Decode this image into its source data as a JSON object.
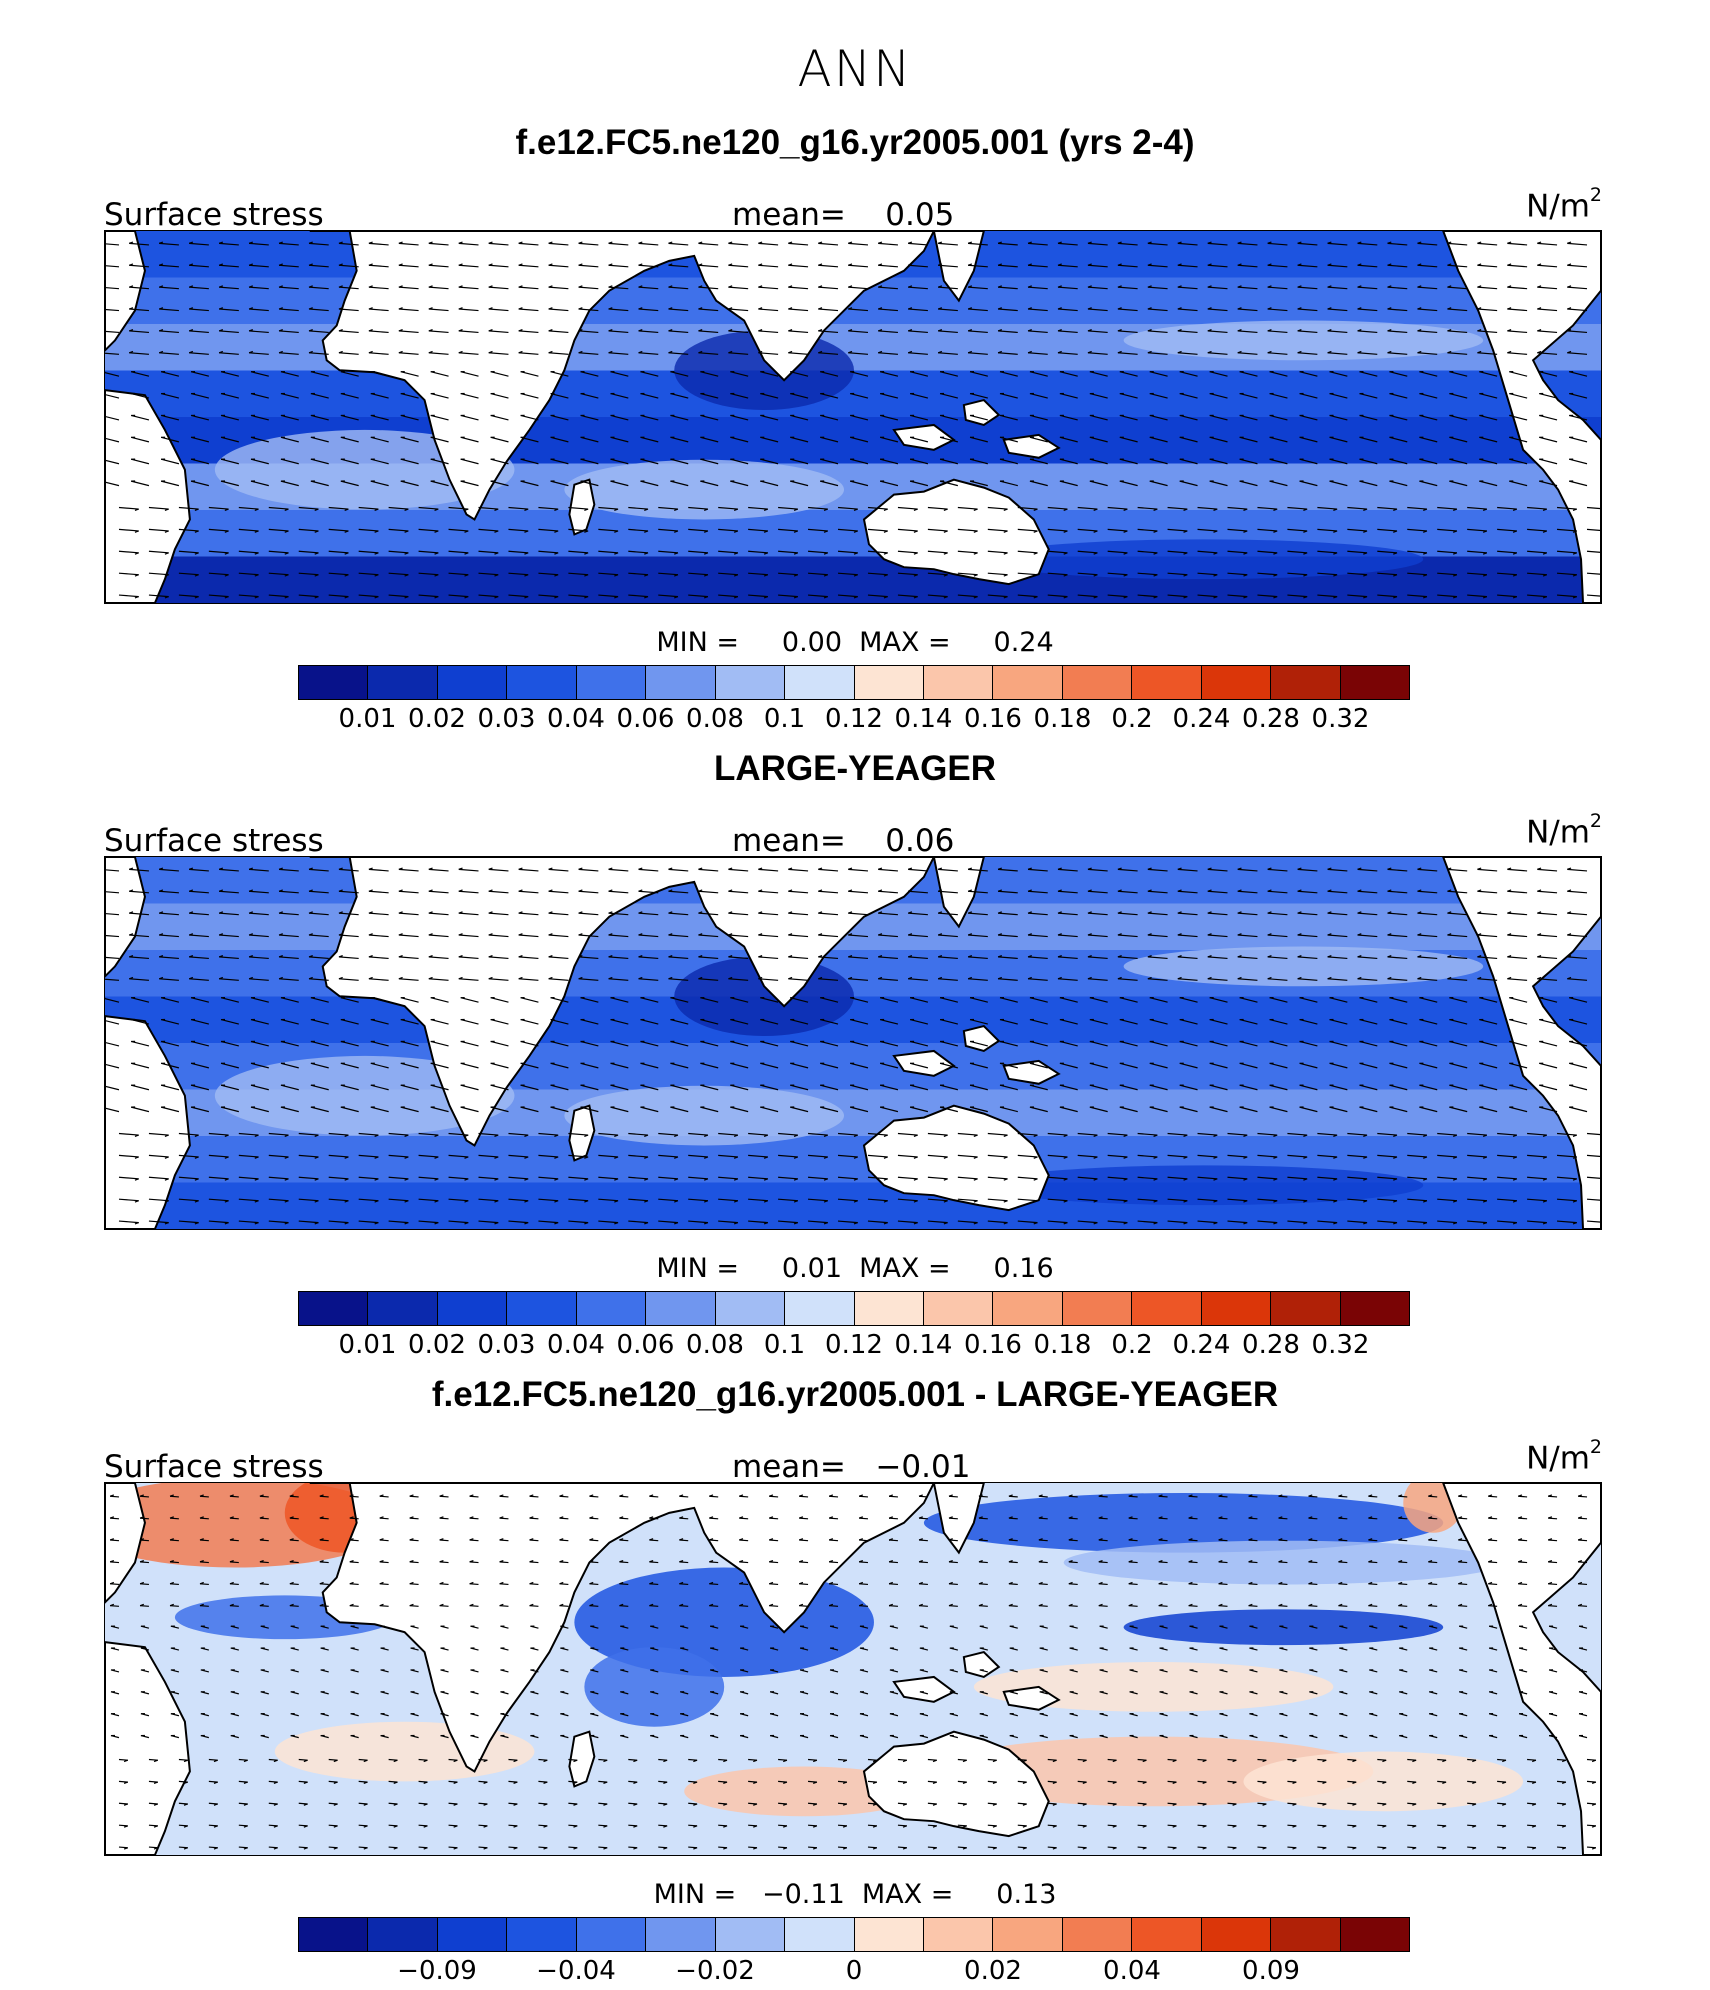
{
  "title": "ANN",
  "colors": {
    "scale": [
      "#08128a",
      "#0b29ad",
      "#0f3fd0",
      "#1d54e0",
      "#3f71ea",
      "#7096ef",
      "#a1bcf4",
      "#d0e1fa",
      "#fde4d3",
      "#fbc6ab",
      "#f8a67f",
      "#f27d52",
      "#ed5626",
      "#db3609",
      "#b02107",
      "#7a0405"
    ],
    "land": "#ffffff",
    "coast": "#000000"
  },
  "panels": [
    {
      "id": "model",
      "title": "f.e12.FC5.ne120_g16.yr2005.001 (yrs 2-4)",
      "field_label": "Surface stress",
      "mean_label": "mean=    0.05",
      "units_base": "N/m",
      "units_exp": "2",
      "min_max_label": "MIN =     0.00  MAX =     0.24",
      "colorbar_ticks": [
        "0.01",
        "0.02",
        "0.03",
        "0.04",
        "0.06",
        "0.08",
        "0.1",
        "0.12",
        "0.14",
        "0.16",
        "0.18",
        "0.2",
        "0.24",
        "0.28",
        "0.32"
      ]
    },
    {
      "id": "obs",
      "title": "LARGE-YEAGER",
      "field_label": "Surface stress",
      "mean_label": "mean=    0.06",
      "units_base": "N/m",
      "units_exp": "2",
      "min_max_label": "MIN =     0.01  MAX =     0.16",
      "colorbar_ticks": [
        "0.01",
        "0.02",
        "0.03",
        "0.04",
        "0.06",
        "0.08",
        "0.1",
        "0.12",
        "0.14",
        "0.16",
        "0.18",
        "0.2",
        "0.24",
        "0.28",
        "0.32"
      ]
    },
    {
      "id": "diff",
      "title": "f.e12.FC5.ne120_g16.yr2005.001 - LARGE-YEAGER",
      "field_label": "Surface stress",
      "mean_label": "mean=   −0.01",
      "units_base": "N/m",
      "units_exp": "2",
      "min_max_label": "MIN =   −0.11  MAX =     0.13",
      "colorbar_ticks": [
        "−0.09",
        "−0.04",
        "−0.02",
        "0",
        "0.02",
        "0.04",
        "0.09"
      ]
    }
  ]
}
